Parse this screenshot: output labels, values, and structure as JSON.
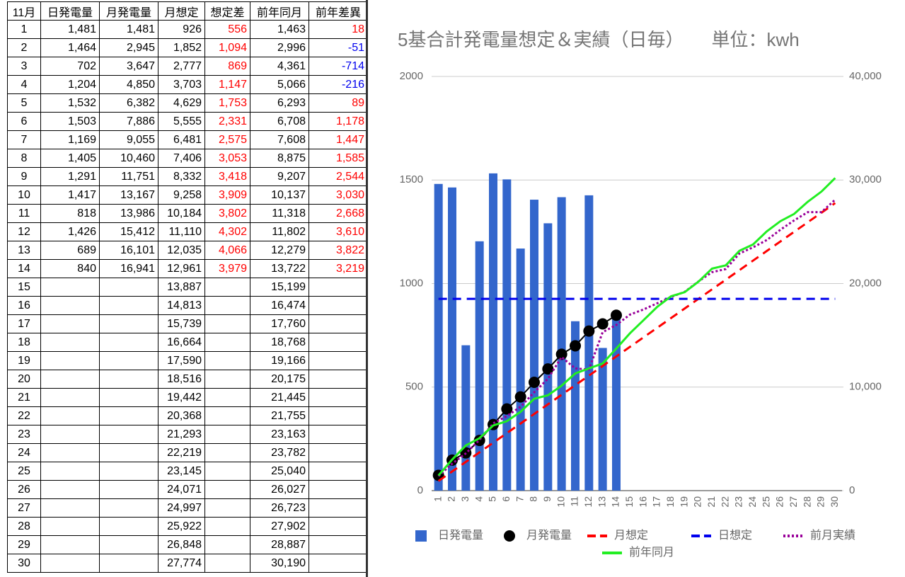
{
  "table": {
    "header": [
      "11月",
      "日発電量",
      "月発電量",
      "月想定",
      "想定差",
      "前年同月",
      "前年差異"
    ],
    "rows": [
      [
        "1",
        "1,481",
        "1,481",
        "926",
        "556",
        "1,463",
        "18"
      ],
      [
        "2",
        "1,464",
        "2,945",
        "1,852",
        "1,094",
        "2,996",
        "-51"
      ],
      [
        "3",
        "702",
        "3,647",
        "2,777",
        "869",
        "4,361",
        "-714"
      ],
      [
        "4",
        "1,204",
        "4,850",
        "3,703",
        "1,147",
        "5,066",
        "-216"
      ],
      [
        "5",
        "1,532",
        "6,382",
        "4,629",
        "1,753",
        "6,293",
        "89"
      ],
      [
        "6",
        "1,503",
        "7,886",
        "5,555",
        "2,331",
        "6,708",
        "1,178"
      ],
      [
        "7",
        "1,169",
        "9,055",
        "6,481",
        "2,575",
        "7,608",
        "1,447"
      ],
      [
        "8",
        "1,405",
        "10,460",
        "7,406",
        "3,053",
        "8,875",
        "1,585"
      ],
      [
        "9",
        "1,291",
        "11,751",
        "8,332",
        "3,418",
        "9,207",
        "2,544"
      ],
      [
        "10",
        "1,417",
        "13,167",
        "9,258",
        "3,909",
        "10,137",
        "3,030"
      ],
      [
        "11",
        "818",
        "13,986",
        "10,184",
        "3,802",
        "11,318",
        "2,668"
      ],
      [
        "12",
        "1,426",
        "15,412",
        "11,110",
        "4,302",
        "11,802",
        "3,610"
      ],
      [
        "13",
        "689",
        "16,101",
        "12,035",
        "4,066",
        "12,279",
        "3,822"
      ],
      [
        "14",
        "840",
        "16,941",
        "12,961",
        "3,979",
        "13,722",
        "3,219"
      ],
      [
        "15",
        null,
        null,
        "13,887",
        null,
        "15,199",
        null
      ],
      [
        "16",
        null,
        null,
        "14,813",
        null,
        "16,474",
        null
      ],
      [
        "17",
        null,
        null,
        "15,739",
        null,
        "17,760",
        null
      ],
      [
        "18",
        null,
        null,
        "16,664",
        null,
        "18,768",
        null
      ],
      [
        "19",
        null,
        null,
        "17,590",
        null,
        "19,166",
        null
      ],
      [
        "20",
        null,
        null,
        "18,516",
        null,
        "20,175",
        null
      ],
      [
        "21",
        null,
        null,
        "19,442",
        null,
        "21,445",
        null
      ],
      [
        "22",
        null,
        null,
        "20,368",
        null,
        "21,755",
        null
      ],
      [
        "23",
        null,
        null,
        "21,293",
        null,
        "23,163",
        null
      ],
      [
        "24",
        null,
        null,
        "22,219",
        null,
        "23,782",
        null
      ],
      [
        "25",
        null,
        null,
        "23,145",
        null,
        "25,040",
        null
      ],
      [
        "26",
        null,
        null,
        "24,071",
        null,
        "26,027",
        null
      ],
      [
        "27",
        null,
        null,
        "24,997",
        null,
        "26,723",
        null
      ],
      [
        "28",
        null,
        null,
        "25,922",
        null,
        "27,902",
        null
      ],
      [
        "29",
        null,
        null,
        "26,848",
        null,
        "28,887",
        null
      ],
      [
        "30",
        null,
        null,
        "27,774",
        null,
        "30,190",
        null
      ]
    ]
  },
  "chart_data": {
    "type": "combo",
    "title": "5基合計発電量想定＆実績（日毎）　　単位：kwh",
    "categories": [
      "1",
      "2",
      "3",
      "4",
      "5",
      "6",
      "7",
      "8",
      "9",
      "10",
      "11",
      "12",
      "13",
      "14",
      "15",
      "16",
      "17",
      "18",
      "19",
      "20",
      "21",
      "22",
      "23",
      "24",
      "25",
      "26",
      "27",
      "28",
      "29",
      "30"
    ],
    "ylim": [
      0,
      2000
    ],
    "yticks": [
      0,
      500,
      1000,
      1500,
      2000
    ],
    "y2lim": [
      0,
      40000
    ],
    "y2ticks": [
      0,
      {
        "value": 10000,
        "label": "10,000"
      },
      {
        "value": 20000,
        "label": "20,000"
      },
      {
        "value": 30000,
        "label": "30,000"
      },
      {
        "value": 40000,
        "label": "40,000"
      }
    ],
    "grid": true,
    "legend": "bottom",
    "series": [
      {
        "name": "日発電量",
        "type": "bar",
        "color": "#3366cc",
        "values": [
          1481,
          1464,
          702,
          1204,
          1532,
          1503,
          1169,
          1405,
          1291,
          1417,
          818,
          1426,
          689,
          840,
          null,
          null,
          null,
          null,
          null,
          null,
          null,
          null,
          null,
          null,
          null,
          null,
          null,
          null,
          null,
          null
        ]
      },
      {
        "name": "月発電量",
        "type": "line",
        "axis": "y2",
        "color": "#000000",
        "dash": "solid",
        "marker": true,
        "values": [
          1481,
          2945,
          3647,
          4850,
          6382,
          7886,
          9055,
          10460,
          11751,
          13167,
          13986,
          15412,
          16101,
          16941,
          null,
          null,
          null,
          null,
          null,
          null,
          null,
          null,
          null,
          null,
          null,
          null,
          null,
          null,
          null,
          null
        ]
      },
      {
        "name": "月想定",
        "type": "line",
        "axis": "y2",
        "color": "#ff0000",
        "dash": "dashed",
        "values": [
          926,
          1852,
          2777,
          3703,
          4629,
          5555,
          6481,
          7406,
          8332,
          9258,
          10184,
          11110,
          12035,
          12961,
          13887,
          14813,
          15739,
          16664,
          17590,
          18516,
          19442,
          20368,
          21293,
          22219,
          23145,
          24071,
          24997,
          25922,
          26848,
          27774
        ]
      },
      {
        "name": "日想定",
        "type": "line",
        "color": "#0000ee",
        "dash": "dashed",
        "values": [
          926,
          926,
          926,
          926,
          926,
          926,
          926,
          926,
          926,
          926,
          926,
          926,
          926,
          926,
          926,
          926,
          926,
          926,
          926,
          926,
          926,
          926,
          926,
          926,
          926,
          926,
          926,
          926,
          926,
          926
        ]
      },
      {
        "name": "前月実績",
        "type": "line",
        "axis": "y2",
        "color": "#990099",
        "dash": "dotted",
        "values": [
          1400,
          2600,
          3600,
          4900,
          6500,
          7200,
          8100,
          9500,
          10800,
          12900,
          11800,
          11700,
          15300,
          16000,
          17000,
          17500,
          18100,
          18700,
          19200,
          20200,
          21100,
          21400,
          22900,
          23500,
          24200,
          25200,
          26100,
          26900,
          26900,
          28100
        ]
      },
      {
        "name": "前年同月",
        "type": "line",
        "axis": "y2",
        "color": "#22ee22",
        "dash": "solid",
        "values": [
          1463,
          2996,
          4361,
          5066,
          6293,
          6708,
          7608,
          8875,
          9207,
          10137,
          11318,
          11802,
          12279,
          13722,
          15199,
          16474,
          17760,
          18768,
          19166,
          20175,
          21445,
          21755,
          23163,
          23782,
          25040,
          26027,
          26723,
          27902,
          28887,
          30190
        ]
      }
    ]
  }
}
